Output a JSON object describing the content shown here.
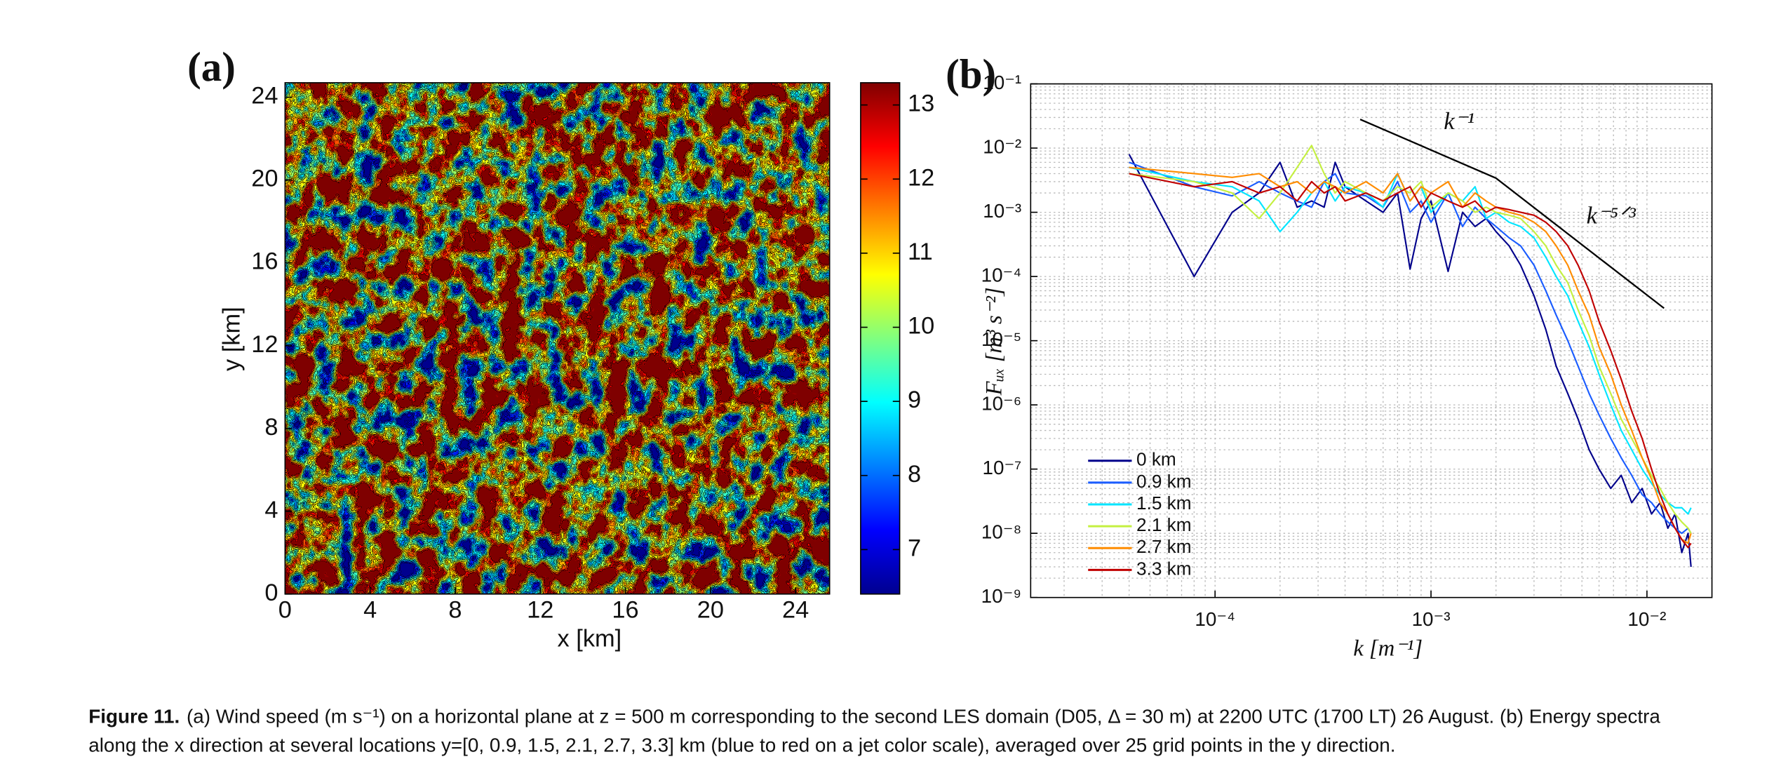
{
  "caption": {
    "label": "Figure 11.",
    "lines": [
      "(a) Wind speed (m s⁻¹) on a horizontal plane at z = 500 m corresponding to the second LES domain (D05, Δ = 30 m) at 2200 UTC (1700 LT) 26 August. (b) Energy spectra",
      "along the x direction at several locations y=[0, 0.9, 1.5, 2.1, 2.7, 3.3] km (blue to red on a jet color scale), averaged over 25 grid points in the y direction."
    ]
  },
  "chart_data": [
    {
      "type": "contour",
      "panel_label": "(a)",
      "xlabel": "x [km]",
      "ylabel": "y [km]",
      "xlim": [
        0,
        25.6
      ],
      "ylim": [
        0,
        24.7
      ],
      "xticks": [
        0,
        4,
        8,
        12,
        16,
        20,
        24
      ],
      "yticks": [
        0,
        4,
        8,
        12,
        16,
        20,
        24
      ],
      "colorbar": {
        "lim": [
          6.4,
          13.3
        ],
        "ticks": [
          7,
          8,
          9,
          10,
          11,
          12,
          13
        ]
      }
    },
    {
      "type": "line",
      "panel_label": "(b)",
      "xlabel": "k [m⁻¹]",
      "ylabel": "Fᵤₓ [m³ s⁻²]",
      "xscale": "log",
      "yscale": "log",
      "grid": true,
      "legend": "lower left",
      "xlim": [
        1.4e-05,
        0.02
      ],
      "ylim": [
        1e-09,
        0.1
      ],
      "xticks": [
        {
          "value": 0.0001,
          "label": "10⁻⁴"
        },
        {
          "value": 0.001,
          "label": "10⁻³"
        },
        {
          "value": 0.01,
          "label": "10⁻²"
        }
      ],
      "yticks": [
        {
          "value": 1e-09,
          "label": "10⁻⁹"
        },
        {
          "value": 1e-08,
          "label": "10⁻⁸"
        },
        {
          "value": 1e-07,
          "label": "10⁻⁷"
        },
        {
          "value": 1e-06,
          "label": "10⁻⁶"
        },
        {
          "value": 1e-05,
          "label": "10⁻⁵"
        },
        {
          "value": 0.0001,
          "label": "10⁻⁴"
        },
        {
          "value": 0.001,
          "label": "10⁻³"
        },
        {
          "value": 0.01,
          "label": "10⁻²"
        },
        {
          "value": 0.1,
          "label": "10⁻¹"
        }
      ],
      "x": [
        4e-05,
        8e-05,
        0.00012,
        0.00016,
        0.0002,
        0.00024,
        0.00028,
        0.00032,
        0.00036,
        0.0004,
        0.0005,
        0.0006,
        0.0007,
        0.0008,
        0.0009,
        0.001,
        0.0012,
        0.0014,
        0.0016,
        0.0018,
        0.002,
        0.0023,
        0.0026,
        0.003,
        0.0034,
        0.0038,
        0.0043,
        0.0048,
        0.0054,
        0.006,
        0.0068,
        0.0076,
        0.0085,
        0.0095,
        0.0105,
        0.0115,
        0.0125,
        0.0135,
        0.0145,
        0.0155,
        0.016
      ],
      "series": [
        {
          "name": "0 km",
          "color": "#00008b",
          "values": [
            0.008,
            0.0001,
            0.001,
            0.002,
            0.006,
            0.0012,
            0.0015,
            0.0012,
            0.006,
            0.0025,
            0.0015,
            0.001,
            0.002,
            0.00013,
            0.0008,
            0.0015,
            0.00012,
            0.001,
            0.0006,
            0.0008,
            0.0005,
            0.0003,
            0.00015,
            5e-05,
            1.5e-05,
            4e-06,
            1.5e-06,
            6e-07,
            2e-07,
            1e-07,
            5e-08,
            8e-08,
            3e-08,
            5e-08,
            2e-08,
            3e-08,
            1.2e-08,
            2e-08,
            5e-09,
            1e-08,
            3e-09
          ]
        },
        {
          "name": "0.9 km",
          "color": "#1a5cff",
          "values": [
            0.006,
            0.0025,
            0.0018,
            0.003,
            0.002,
            0.0015,
            0.0012,
            0.003,
            0.004,
            0.002,
            0.0018,
            0.0012,
            0.003,
            0.001,
            0.0015,
            0.0007,
            0.002,
            0.0006,
            0.0012,
            0.0008,
            0.0006,
            0.0004,
            0.0003,
            0.00015,
            6e-05,
            2.5e-05,
            1e-05,
            4e-06,
            1.5e-06,
            7e-07,
            3e-07,
            1.5e-07,
            8e-08,
            4e-08,
            3e-08,
            2e-08,
            1.5e-08,
            1.2e-08,
            1e-08,
            1.2e-08,
            1e-08
          ]
        },
        {
          "name": "1.5 km",
          "color": "#00e5ff",
          "values": [
            0.005,
            0.003,
            0.0025,
            0.0015,
            0.0005,
            0.001,
            0.002,
            0.003,
            0.0015,
            0.0025,
            0.002,
            0.0012,
            0.004,
            0.0015,
            0.0025,
            0.001,
            0.002,
            0.0015,
            0.0025,
            0.0008,
            0.001,
            0.0007,
            0.0006,
            0.0004,
            0.0002,
            0.0001,
            5e-05,
            2e-05,
            8e-06,
            3e-06,
            1e-06,
            4e-07,
            2e-07,
            1e-07,
            6e-08,
            4e-08,
            3e-08,
            2.5e-08,
            2.5e-08,
            2e-08,
            2.5e-08
          ]
        },
        {
          "name": "2.1 km",
          "color": "#c4f040",
          "values": [
            0.004,
            0.003,
            0.002,
            0.0008,
            0.002,
            0.005,
            0.011,
            0.004,
            0.002,
            0.003,
            0.002,
            0.0015,
            0.0025,
            0.002,
            0.003,
            0.0012,
            0.002,
            0.0015,
            0.001,
            0.0012,
            0.001,
            0.0009,
            0.0008,
            0.0005,
            0.0003,
            0.00015,
            8e-05,
            3e-05,
            1.2e-05,
            4e-06,
            1.5e-06,
            6e-07,
            3e-07,
            1.5e-07,
            8e-08,
            5e-08,
            3e-08,
            2e-08,
            1.5e-08,
            1.2e-08,
            1e-08
          ]
        },
        {
          "name": "2.7 km",
          "color": "#ff8c00",
          "values": [
            0.005,
            0.004,
            0.0035,
            0.004,
            0.0025,
            0.003,
            0.002,
            0.003,
            0.0025,
            0.002,
            0.003,
            0.002,
            0.004,
            0.0015,
            0.0025,
            0.002,
            0.003,
            0.0012,
            0.002,
            0.0015,
            0.0012,
            0.001,
            0.0009,
            0.0007,
            0.0005,
            0.0003,
            0.00015,
            6e-05,
            2.5e-05,
            8e-06,
            3e-06,
            1e-06,
            4e-07,
            1.5e-07,
            7e-08,
            3e-08,
            2e-08,
            1.2e-08,
            8e-09,
            7e-09,
            1e-08
          ]
        },
        {
          "name": "3.3 km",
          "color": "#c00000",
          "values": [
            0.004,
            0.0025,
            0.003,
            0.002,
            0.0025,
            0.0015,
            0.003,
            0.002,
            0.0025,
            0.0015,
            0.002,
            0.0015,
            0.002,
            0.0025,
            0.0012,
            0.002,
            0.0015,
            0.0012,
            0.0015,
            0.001,
            0.0012,
            0.0011,
            0.001,
            0.0009,
            0.0007,
            0.0005,
            0.0003,
            0.00015,
            6e-05,
            2e-05,
            7e-06,
            2.5e-06,
            8e-07,
            3e-07,
            1e-07,
            4e-08,
            2e-08,
            1.2e-08,
            8e-09,
            6e-09,
            7e-09
          ]
        }
      ],
      "annotations": [
        {
          "text": "k⁻¹",
          "x": [
            0.00047,
            0.002
          ],
          "y": [
            0.028,
            0.0034
          ]
        },
        {
          "text": "k⁻⁵ᐟ³",
          "x": [
            0.002,
            0.012
          ],
          "y": [
            0.0034,
            3.2e-05
          ]
        }
      ]
    }
  ]
}
